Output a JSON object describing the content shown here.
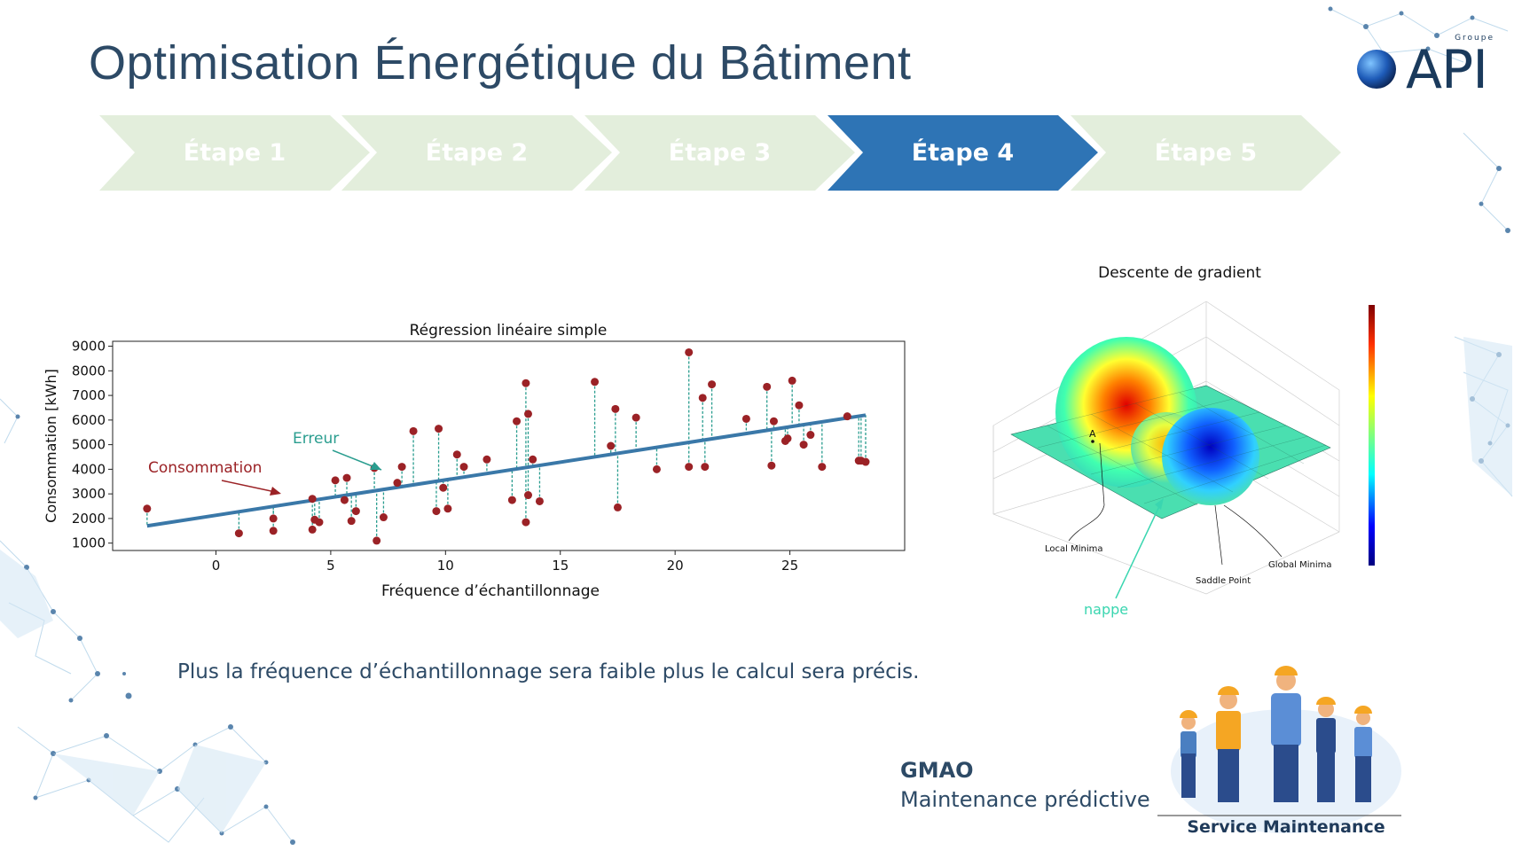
{
  "title": "Optimisation Énergétique du Bâtiment",
  "logo": {
    "groupe": "Groupe",
    "brand": "API"
  },
  "steps": [
    {
      "label": "Étape 1",
      "active": false
    },
    {
      "label": "Étape 2",
      "active": false
    },
    {
      "label": "Étape 3",
      "active": false
    },
    {
      "label": "Étape 4",
      "active": true
    },
    {
      "label": "Étape 5",
      "active": false
    }
  ],
  "colors": {
    "step_inactive": "#e3eedc",
    "step_active": "#2e74b5",
    "title": "#2d4a66",
    "line": "#3a78a8",
    "point": "#9b2226",
    "error": "#2a9d8f"
  },
  "chart_data": {
    "type": "scatter",
    "title": "Régression linéaire simple",
    "xlabel": "Fréquence d’échantillonnage",
    "ylabel": "Consommation [kWh]",
    "xlim": [
      -4.5,
      30
    ],
    "ylim": [
      700,
      9200
    ],
    "xticks": [
      0,
      5,
      10,
      15,
      20,
      25
    ],
    "yticks": [
      1000,
      2000,
      3000,
      4000,
      5000,
      6000,
      7000,
      8000,
      9000
    ],
    "regression": {
      "x": [
        -3,
        28.3
      ],
      "y": [
        1700,
        6200
      ]
    },
    "points": [
      {
        "x": -3,
        "y": 2400
      },
      {
        "x": 1,
        "y": 1400
      },
      {
        "x": 2.5,
        "y": 1500
      },
      {
        "x": 2.5,
        "y": 2000
      },
      {
        "x": 4.2,
        "y": 2800
      },
      {
        "x": 4.2,
        "y": 1550
      },
      {
        "x": 4.3,
        "y": 1950
      },
      {
        "x": 4.5,
        "y": 1850
      },
      {
        "x": 5.2,
        "y": 3550
      },
      {
        "x": 5.6,
        "y": 2750
      },
      {
        "x": 5.7,
        "y": 3650
      },
      {
        "x": 5.9,
        "y": 1900
      },
      {
        "x": 6.1,
        "y": 2300
      },
      {
        "x": 6.9,
        "y": 4050
      },
      {
        "x": 7.0,
        "y": 1100
      },
      {
        "x": 7.3,
        "y": 2050
      },
      {
        "x": 7.9,
        "y": 3450
      },
      {
        "x": 8.1,
        "y": 4100
      },
      {
        "x": 8.6,
        "y": 5550
      },
      {
        "x": 9.6,
        "y": 2300
      },
      {
        "x": 9.7,
        "y": 5650
      },
      {
        "x": 9.9,
        "y": 3250
      },
      {
        "x": 10.1,
        "y": 2400
      },
      {
        "x": 10.5,
        "y": 4600
      },
      {
        "x": 10.8,
        "y": 4100
      },
      {
        "x": 11.8,
        "y": 4400
      },
      {
        "x": 12.9,
        "y": 2750
      },
      {
        "x": 13.1,
        "y": 5950
      },
      {
        "x": 13.5,
        "y": 7500
      },
      {
        "x": 13.5,
        "y": 1850
      },
      {
        "x": 13.6,
        "y": 6250
      },
      {
        "x": 13.6,
        "y": 2950
      },
      {
        "x": 13.8,
        "y": 4400
      },
      {
        "x": 14.1,
        "y": 2700
      },
      {
        "x": 16.5,
        "y": 7550
      },
      {
        "x": 17.2,
        "y": 4950
      },
      {
        "x": 17.4,
        "y": 6450
      },
      {
        "x": 17.5,
        "y": 2450
      },
      {
        "x": 18.3,
        "y": 6100
      },
      {
        "x": 19.2,
        "y": 4000
      },
      {
        "x": 20.6,
        "y": 8750
      },
      {
        "x": 20.6,
        "y": 4100
      },
      {
        "x": 21.2,
        "y": 6900
      },
      {
        "x": 21.3,
        "y": 4100
      },
      {
        "x": 21.6,
        "y": 7450
      },
      {
        "x": 23.1,
        "y": 6050
      },
      {
        "x": 24.0,
        "y": 7350
      },
      {
        "x": 24.2,
        "y": 4150
      },
      {
        "x": 24.3,
        "y": 5950
      },
      {
        "x": 24.8,
        "y": 5150
      },
      {
        "x": 24.9,
        "y": 5250
      },
      {
        "x": 25.1,
        "y": 7600
      },
      {
        "x": 25.4,
        "y": 6600
      },
      {
        "x": 25.6,
        "y": 5000
      },
      {
        "x": 25.9,
        "y": 5400
      },
      {
        "x": 26.4,
        "y": 4100
      },
      {
        "x": 27.5,
        "y": 6150
      },
      {
        "x": 28.0,
        "y": 4350
      },
      {
        "x": 28.1,
        "y": 4350
      },
      {
        "x": 28.3,
        "y": 4300
      }
    ],
    "annotations": [
      {
        "text": "Erreur",
        "color": "#2a9d8f"
      },
      {
        "text": "Consommation",
        "color": "#9b2226"
      }
    ]
  },
  "gradient_chart": {
    "title": "Descente de gradient",
    "labels": {
      "local_minima": "Local Minima",
      "saddle_point": "Saddle Point",
      "global_minima": "Global Minima",
      "point_a": "A",
      "nappe": "nappe"
    }
  },
  "caption": "Plus la fréquence d’échantillonnage sera faible plus le calcul sera précis.",
  "gmao": {
    "title": "GMAO",
    "subtitle": "Maintenance prédictive"
  },
  "service": "Service Maintenance"
}
